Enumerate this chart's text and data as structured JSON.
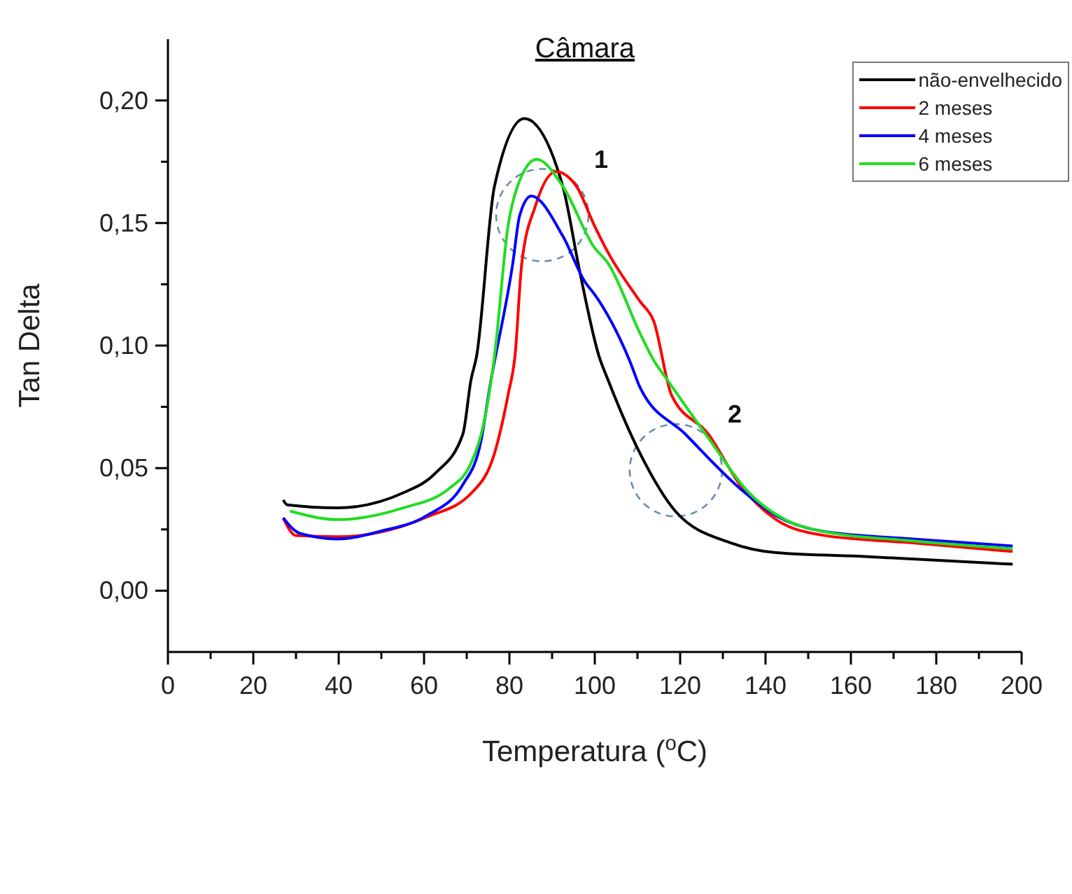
{
  "chart_data": {
    "type": "line",
    "title": "Câmara",
    "xlabel": "Temperatura ($^{o}$C)",
    "ylabel": "Tan Delta",
    "xlim": [
      0,
      200
    ],
    "ylim": [
      -0.025,
      0.225
    ],
    "xticks": [
      0,
      {
        "value": 10,
        "label": null
      },
      20,
      {
        "value": 30,
        "label": null
      },
      40,
      {
        "value": 50,
        "label": null
      },
      60,
      {
        "value": 70,
        "label": null
      },
      80,
      {
        "value": 90,
        "label": null
      },
      100,
      {
        "value": 110,
        "label": null
      },
      120,
      {
        "value": 130,
        "label": null
      },
      140,
      {
        "value": 150,
        "label": null
      },
      160,
      {
        "value": 170,
        "label": null
      },
      180,
      {
        "value": 190,
        "label": null
      },
      200
    ],
    "yticks": [
      {
        "value": 0,
        "label": "0,00"
      },
      {
        "value": 0.025,
        "label": null
      },
      {
        "value": 0.05,
        "label": "0,05"
      },
      {
        "value": 0.075,
        "label": null
      },
      {
        "value": 0.1,
        "label": "0,10"
      },
      {
        "value": 0.125,
        "label": null
      },
      {
        "value": 0.15,
        "label": "0,15"
      },
      {
        "value": 0.175,
        "label": null
      },
      {
        "value": 0.2,
        "label": "0,20"
      }
    ],
    "legend": "top right",
    "marker": "none",
    "grid": false,
    "annotations": [
      {
        "text": "1",
        "x": 87.7,
        "y": 0.165
      },
      {
        "text": "2",
        "x": 119,
        "y": 0.078
      }
    ],
    "series": [
      {
        "name": "não-envelhecido",
        "color": "#000000",
        "x": [
          27,
          28,
          39.8,
          55.2,
          62.7,
          69.1,
          71,
          72.3,
          76.5,
          83.5,
          92.5,
          96.5,
          101,
          103.1,
          110.6,
          119.1,
          131.9,
          142.5,
          163.8,
          197.9
        ],
        "values": [
          0.037,
          0.035,
          0.0338,
          0.04,
          0.048,
          0.0639,
          0.086,
          0.0956,
          0.165,
          0.1926,
          0.165,
          0.13,
          0.0956,
          0.086,
          0.056,
          0.032,
          0.0195,
          0.0155,
          0.0139,
          0.0108
        ]
      },
      {
        "name": "2 meses",
        "color": "#ff0000",
        "x": [
          27,
          30,
          39.8,
          60.6,
          71.2,
          76.5,
          79.7,
          81.3,
          82.9,
          86.1,
          90.9,
          95.7,
          99.9,
          103.1,
          110.6,
          113.8,
          118,
          126.6,
          134,
          142.5,
          153.2,
          174.5,
          197.9
        ],
        "values": [
          0.0297,
          0.0225,
          0.022,
          0.03,
          0.04,
          0.056,
          0.08,
          0.0956,
          0.1336,
          0.157,
          0.171,
          0.165,
          0.149,
          0.138,
          0.118,
          0.11,
          0.0797,
          0.0639,
          0.0433,
          0.029,
          0.0227,
          0.0195,
          0.016
        ]
      },
      {
        "name": "4 meses",
        "color": "#0000ff",
        "x": [
          27,
          30.8,
          39.8,
          49.9,
          60.6,
          69.1,
          73.3,
          75.4,
          80.8,
          82.4,
          85.1,
          92.5,
          97.8,
          99.9,
          108.5,
          110.6,
          121.2,
          134,
          142.5,
          153.2,
          174.5,
          197.9
        ],
        "values": [
          0.0297,
          0.0235,
          0.0211,
          0.0243,
          0.0306,
          0.0433,
          0.0607,
          0.083,
          0.1336,
          0.153,
          0.161,
          0.1447,
          0.1257,
          0.121,
          0.0924,
          0.0829,
          0.0639,
          0.0417,
          0.0306,
          0.0243,
          0.0211,
          0.0182
        ]
      },
      {
        "name": "6 meses",
        "color": "#22dd22",
        "x": [
          28.6,
          39.8,
          55.2,
          65.9,
          71.2,
          74.4,
          76.5,
          79.7,
          81.9,
          86.4,
          92.5,
          99.9,
          103.1,
          110.6,
          113.8,
          117,
          126.6,
          136.1,
          144.6,
          153.2,
          174.5,
          197.9
        ],
        "values": [
          0.0325,
          0.029,
          0.0338,
          0.0417,
          0.0528,
          0.0718,
          0.0956,
          0.149,
          0.165,
          0.176,
          0.165,
          0.14,
          0.1336,
          0.105,
          0.094,
          0.086,
          0.0623,
          0.04,
          0.029,
          0.0243,
          0.0203,
          0.0171
        ]
      }
    ]
  }
}
